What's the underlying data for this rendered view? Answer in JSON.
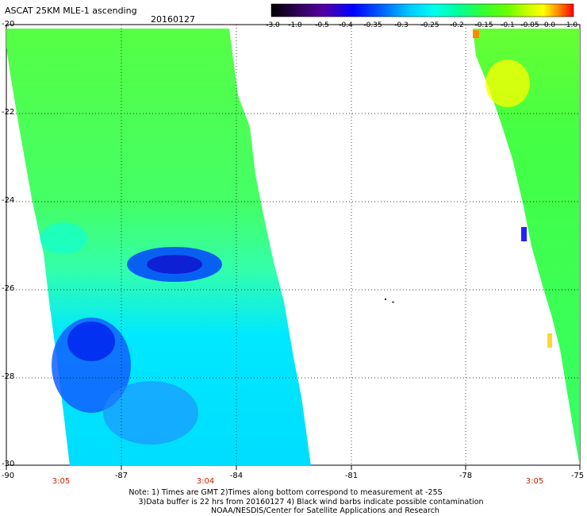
{
  "title": "ASCAT 25KM MLE-1 ascending",
  "date": "20160127",
  "colorbar": {
    "ticks": [
      "-3.0",
      "-1.0",
      "-0.5",
      "-0.4",
      "-0.35",
      "-0.3",
      "-0.25",
      "-0.2",
      "-0.15",
      "-0.1",
      "-0.05",
      "0.0",
      "1.0"
    ],
    "colors": [
      "#1a0030",
      "#55008a",
      "#0000ff",
      "#0055ff",
      "#0099ff",
      "#00ddff",
      "#00ffcc",
      "#33ff66",
      "#66ff33",
      "#bbff00",
      "#ffff00",
      "#ff8800",
      "#ff2200"
    ]
  },
  "y_axis": [
    "-20",
    "-22",
    "-24",
    "-26",
    "-28",
    "-30"
  ],
  "x_axis": [
    "-90",
    "-87",
    "-84",
    "-81",
    "-78",
    "-75"
  ],
  "times": [
    "3:05",
    "3:04",
    "3:05"
  ],
  "notes": [
    "Note: 1) Times are GMT 2)Times along bottom correspond to measurement at -25S",
    "3)Data buffer is 22 hrs from 20160127 4) Black wind barbs indicate possible contamination",
    "NOAA/NESDIS/Center for Satellite Applications and Research"
  ]
}
